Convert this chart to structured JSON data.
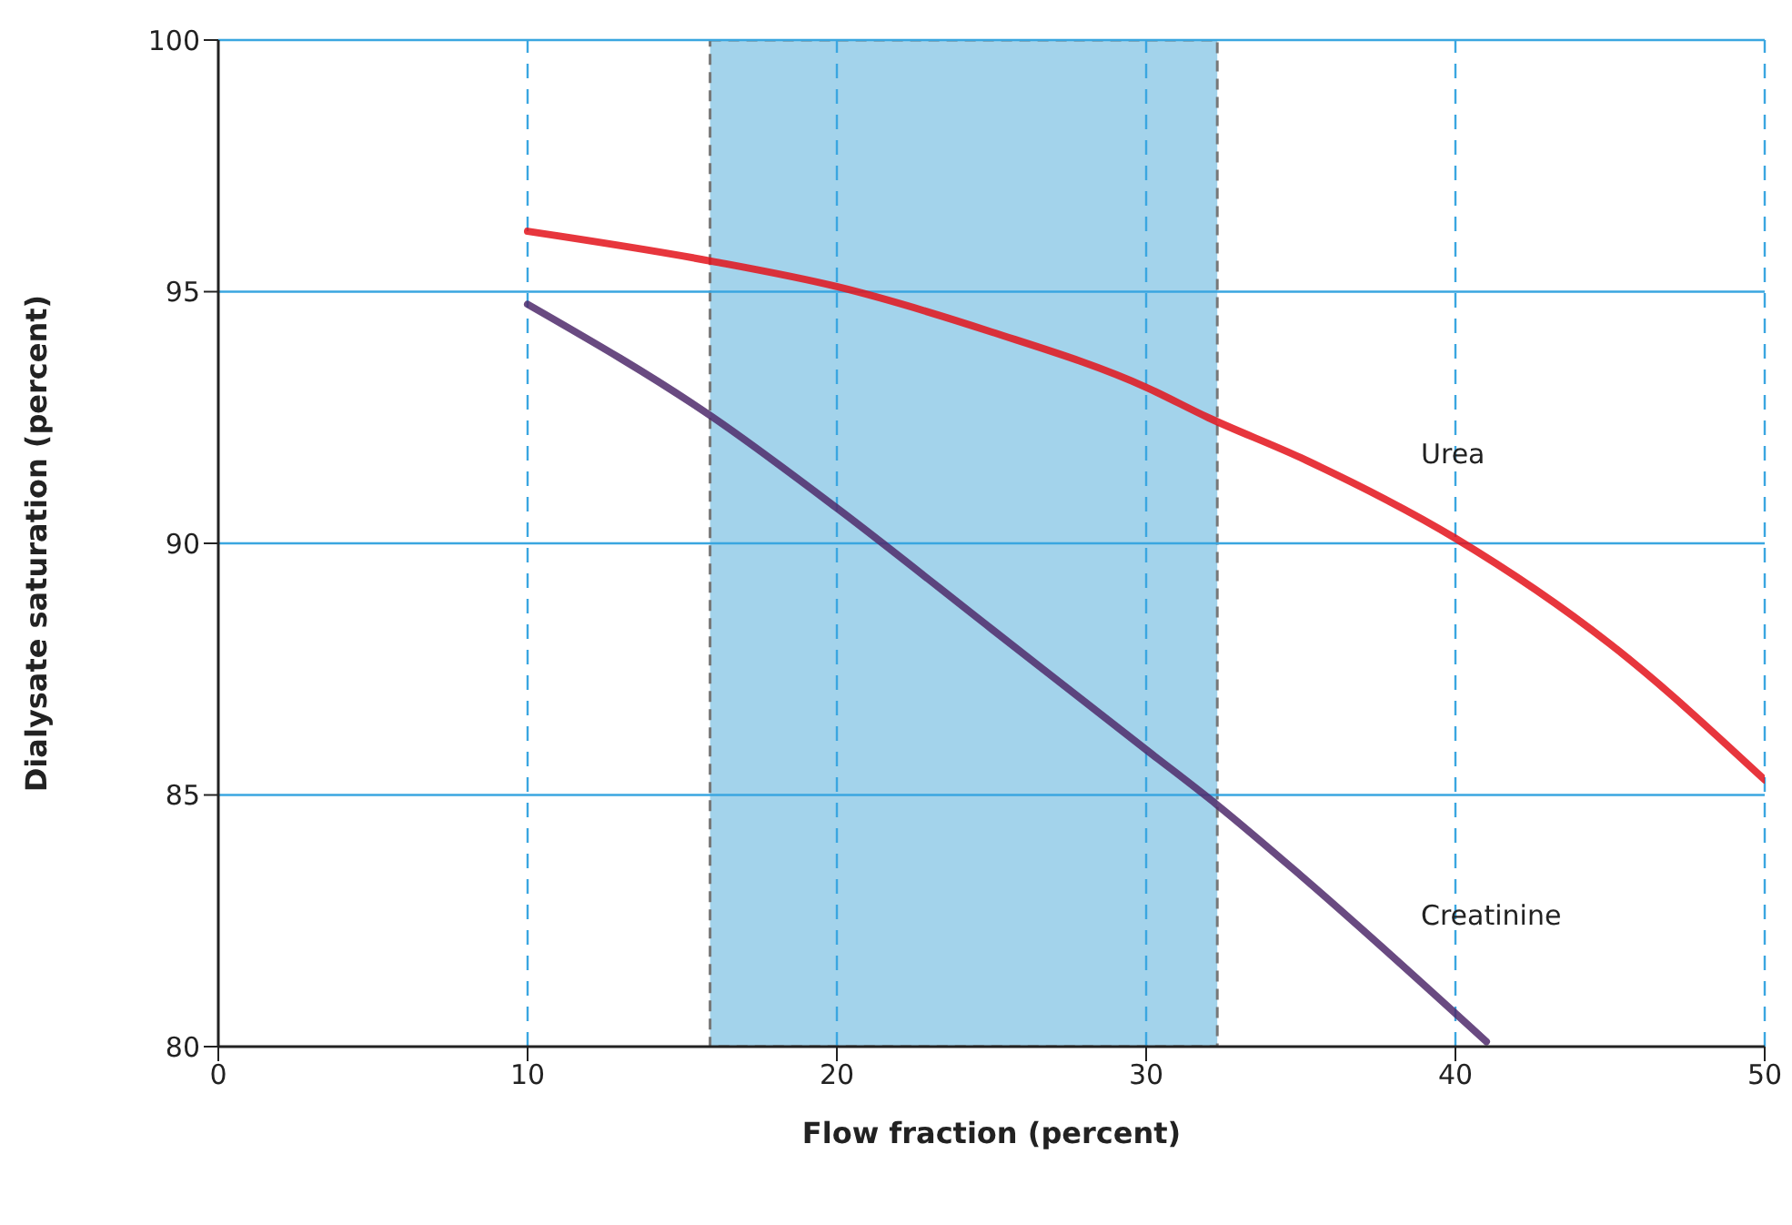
{
  "chart_data": {
    "type": "line",
    "xlabel": "Flow fraction (percent)",
    "ylabel": "Dialysate saturation (percent)",
    "xlim": [
      0,
      50
    ],
    "xticks": [
      0,
      10,
      20,
      30,
      40,
      50
    ],
    "ylim": [
      80,
      100
    ],
    "yticks": [
      80,
      85,
      90,
      95,
      100
    ],
    "grid": true,
    "marker": "none",
    "line_style": "solid",
    "bands": [
      {
        "axis": "x",
        "from": 15.9,
        "to": 32.3,
        "color": "#a3d3eb"
      }
    ],
    "series": [
      {
        "name": "Urea",
        "color": "#e3131b",
        "x": [
          10,
          16,
          20,
          25,
          30,
          32,
          35,
          40,
          45,
          50
        ],
        "values": [
          96.2,
          95.6,
          95.1,
          94.2,
          93.1,
          92.5,
          91.7,
          90.1,
          88.0,
          85.3
        ]
      },
      {
        "name": "Creatinine",
        "color": "#4f2a6b",
        "x": [
          10,
          16,
          20,
          25,
          30,
          32.3,
          35,
          41
        ],
        "values": [
          94.75,
          92.5,
          90.7,
          88.3,
          85.9,
          84.8,
          83.4,
          80.1
        ]
      }
    ]
  }
}
